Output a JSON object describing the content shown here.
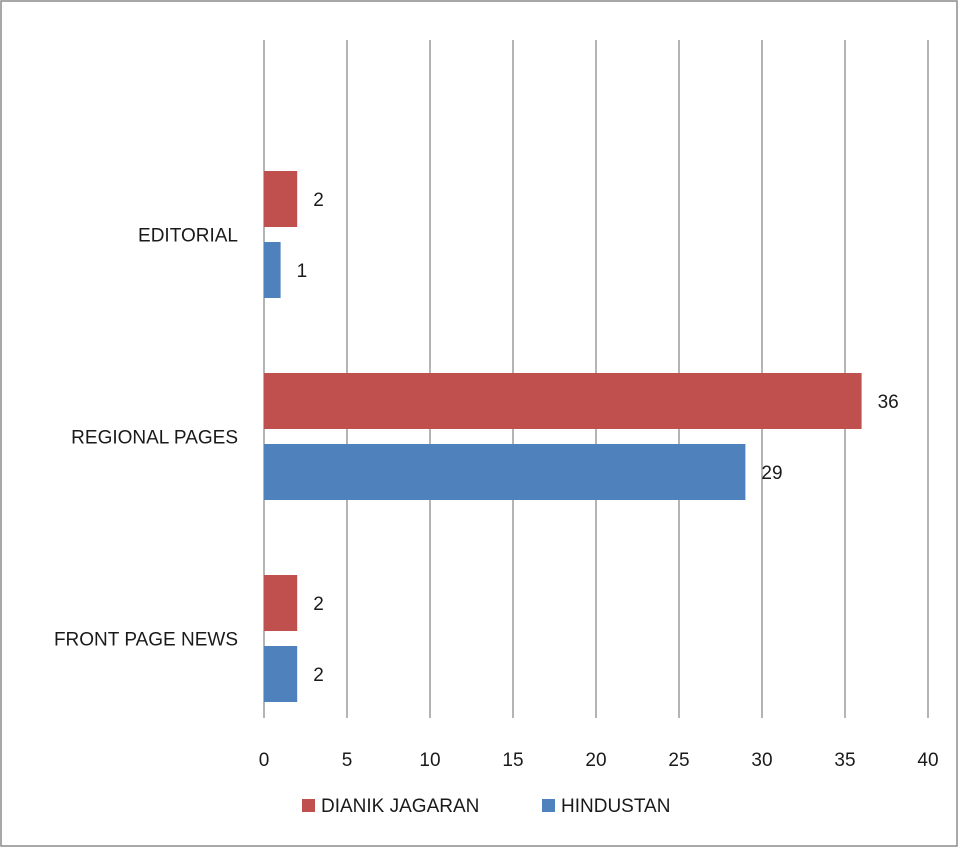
{
  "chart_data": {
    "type": "bar",
    "orientation": "horizontal",
    "categories": [
      "FRONT PAGE NEWS",
      "REGIONAL PAGES",
      "EDITORIAL"
    ],
    "series": [
      {
        "name": "DIANIK JAGARAN",
        "color": "#c0504d",
        "values": [
          2,
          36,
          2
        ]
      },
      {
        "name": "HINDUSTAN",
        "color": "#4f81bd",
        "values": [
          2,
          29,
          1
        ]
      }
    ],
    "xlim": [
      0,
      40
    ],
    "xticks": [
      0,
      5,
      10,
      15,
      20,
      25,
      30,
      35,
      40
    ],
    "grid": true,
    "legend_position": "bottom",
    "title": "",
    "xlabel": "",
    "ylabel": ""
  }
}
